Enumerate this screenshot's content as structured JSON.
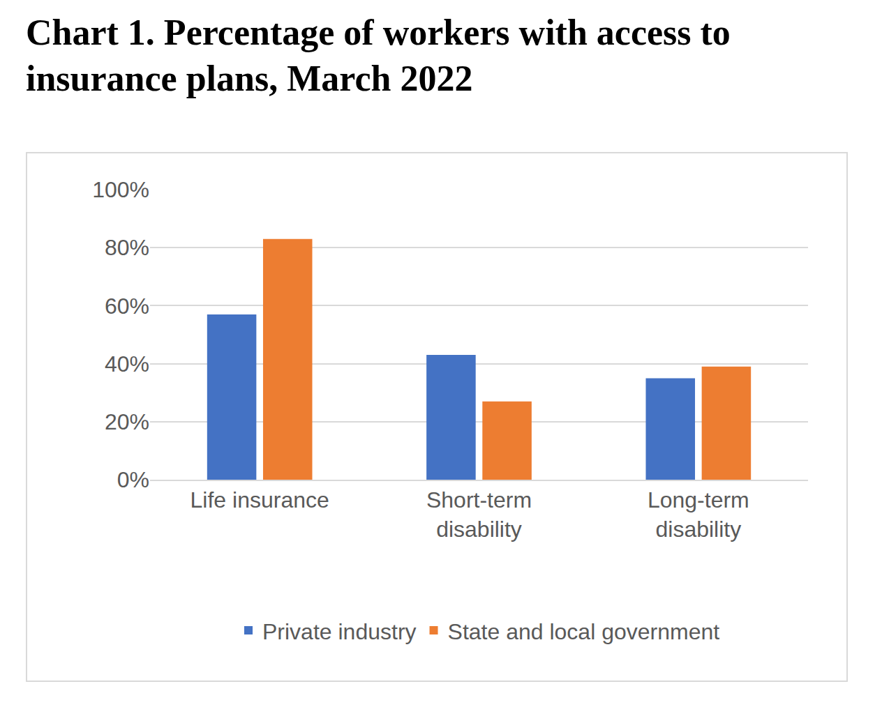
{
  "chart_data": {
    "type": "bar",
    "title": "Chart 1. Percentage of workers with access to insurance plans, March 2022",
    "categories": [
      "Life insurance",
      "Short-term disability",
      "Long-term disability"
    ],
    "series": [
      {
        "name": "Private industry",
        "color": "#4472c4",
        "values": [
          57,
          43,
          35
        ]
      },
      {
        "name": "State and local government",
        "color": "#ed7d31",
        "values": [
          83,
          27,
          39
        ]
      }
    ],
    "ylim": [
      0,
      100
    ],
    "yticks": [
      {
        "value": 0,
        "label": "0%"
      },
      {
        "value": 20,
        "label": "20%"
      },
      {
        "value": 40,
        "label": "40%"
      },
      {
        "value": 60,
        "label": "60%"
      },
      {
        "value": 80,
        "label": "80%"
      },
      {
        "value": 100,
        "label": "100%"
      }
    ],
    "grid": true,
    "legend": "bottom"
  }
}
